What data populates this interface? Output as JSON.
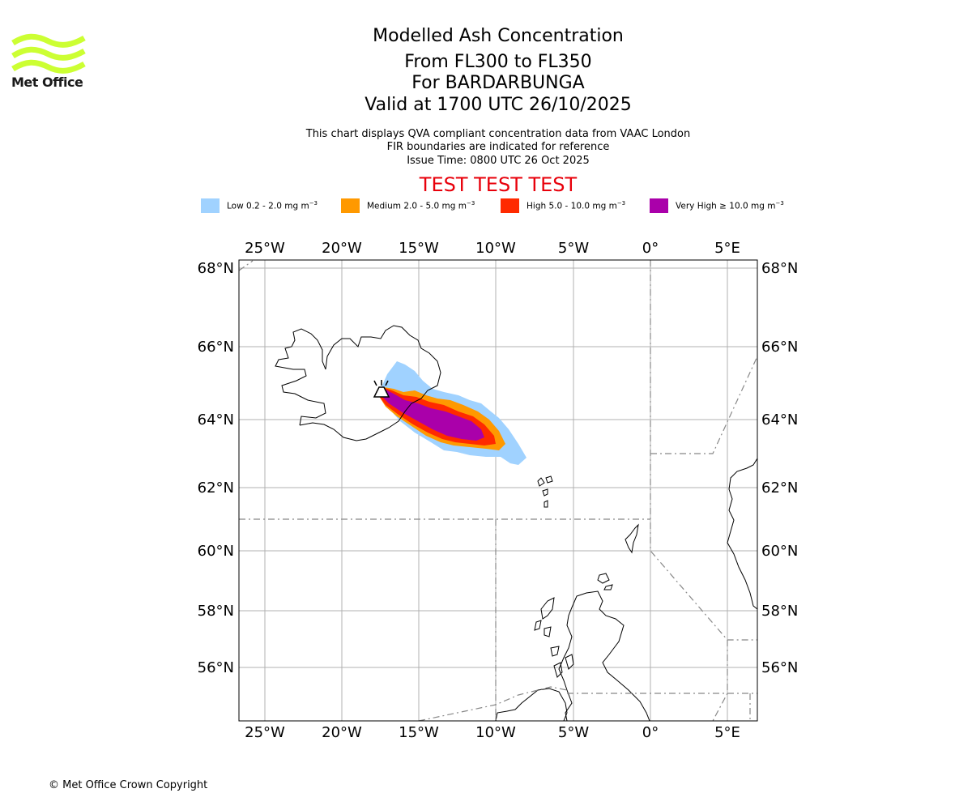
{
  "logo": {
    "icon": "met-office-wave-logo-icon",
    "text": "Met Office",
    "color": "#ccff33"
  },
  "title": {
    "line1": "Modelled Ash Concentration",
    "line2": "From FL300 to FL350",
    "line3": "For BARDARBUNGA",
    "line4": "Valid at 1700 UTC 26/10/2025"
  },
  "subtitle": {
    "line1": "This chart displays QVA compliant concentration data from VAAC London",
    "line2": "FIR boundaries are indicated for reference",
    "line3": "Issue Time: 0800 UTC 26 Oct 2025"
  },
  "test_banner": "TEST TEST TEST",
  "legend": [
    {
      "label": "Low 0.2 - 2.0 mg m",
      "unit_exp": "−3",
      "color": "#a0d2ff"
    },
    {
      "label": "Medium 2.0 - 5.0 mg m",
      "unit_exp": "−3",
      "color": "#ff9900"
    },
    {
      "label": "High 5.0 - 10.0 mg m",
      "unit_exp": "−3",
      "color": "#ff2a00"
    },
    {
      "label": "Very High ≥ 10.0 mg m",
      "unit_exp": "−3",
      "color": "#aa00aa"
    }
  ],
  "map": {
    "lon_ticks": [
      "25°W",
      "20°W",
      "15°W",
      "10°W",
      "5°W",
      "0°",
      "5°E"
    ],
    "lat_ticks": [
      "68°N",
      "66°N",
      "64°N",
      "62°N",
      "60°N",
      "58°N",
      "56°N"
    ],
    "volcano": {
      "name": "BARDARBUNGA",
      "icon": "volcano-icon"
    }
  },
  "copyright": "© Met Office Crown Copyright"
}
